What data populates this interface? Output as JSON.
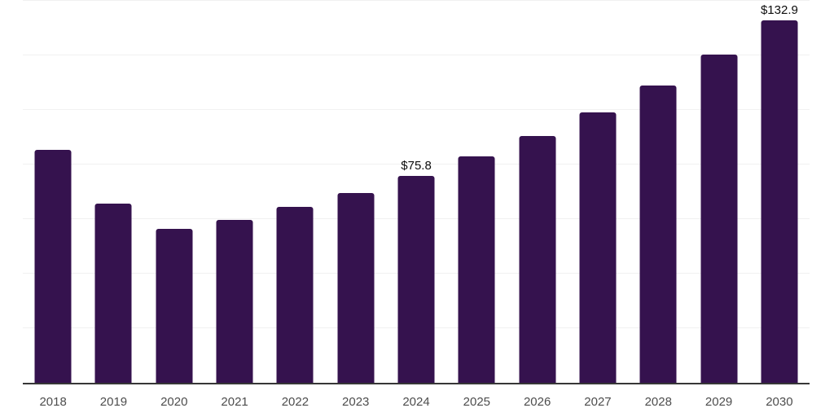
{
  "chart_data": {
    "type": "bar",
    "title": "",
    "xlabel": "",
    "ylabel": "",
    "categories": [
      "2018",
      "2019",
      "2020",
      "2021",
      "2022",
      "2023",
      "2024",
      "2025",
      "2026",
      "2027",
      "2028",
      "2029",
      "2030"
    ],
    "values": [
      85.5,
      65.8,
      56.3,
      59.6,
      64.4,
      69.6,
      75.8,
      82.9,
      90.5,
      99.2,
      109.0,
      120.3,
      132.9
    ],
    "data_labels": {
      "2024": "$75.8",
      "2030": "$132.9"
    },
    "ylim": [
      0,
      140
    ],
    "gridline_step": 20,
    "grid": true,
    "legend": false,
    "y_axis_tick_labels_visible": false,
    "colors": {
      "bar": "#35124e",
      "axis_line": "#373737",
      "gridline": "#f1f1f1",
      "data_label": "#0d0d0d",
      "tick_label": "#4d4d4d",
      "background": "#ffffff"
    }
  }
}
